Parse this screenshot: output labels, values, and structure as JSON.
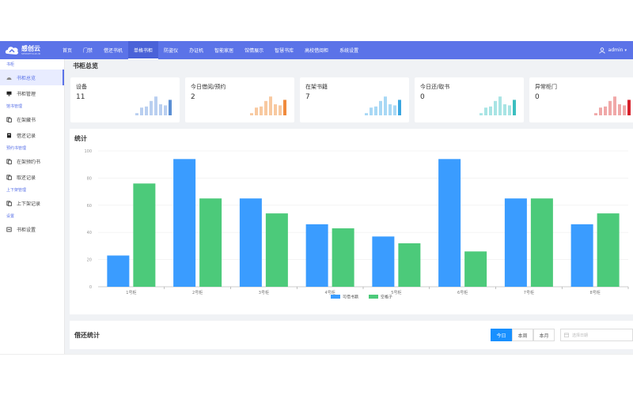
{
  "brand": {
    "name_cn": "感创云",
    "name_en": "SENSETCLOUD"
  },
  "nav": {
    "items": [
      "首页",
      "门禁",
      "借还书机",
      "单格书柜",
      "防盗仪",
      "办证机",
      "智能家居",
      "馆情展示",
      "智慧书库",
      "高校借阅柜",
      "系统设置"
    ],
    "active_index": 3
  },
  "user": {
    "name": "admin"
  },
  "sidebar": {
    "groups": [
      {
        "title": "书柜",
        "items": [
          {
            "label": "书柜总览",
            "icon": "dashboard-icon",
            "active": true
          },
          {
            "label": "书柜管理",
            "icon": "monitor-icon"
          }
        ]
      },
      {
        "title": "馆书管理",
        "items": [
          {
            "label": "在架藏书",
            "icon": "book-icon"
          },
          {
            "label": "借还记录",
            "icon": "record-icon"
          }
        ]
      },
      {
        "title": "预约书管理",
        "items": [
          {
            "label": "在架预约书",
            "icon": "book-icon"
          },
          {
            "label": "取还记录",
            "icon": "book-icon"
          }
        ]
      },
      {
        "title": "上下架管理",
        "items": [
          {
            "label": "上下架记录",
            "icon": "book-icon"
          }
        ]
      },
      {
        "title": "设置",
        "items": [
          {
            "label": "书柜设置",
            "icon": "settings-icon"
          }
        ]
      }
    ]
  },
  "page": {
    "title": "书柜总览"
  },
  "cards": [
    {
      "label": "设备",
      "value": "11",
      "color": "#5b8fd4",
      "light": "#b9cff0",
      "bars": [
        0.1,
        0.35,
        0.4,
        0.65,
        0.85,
        0.5,
        0.45,
        0.7
      ]
    },
    {
      "label": "今日借阅/预约",
      "value": "2",
      "color": "#f08a3c",
      "light": "#f8c9a0",
      "bars": [
        0.1,
        0.35,
        0.4,
        0.65,
        0.85,
        0.5,
        0.45,
        0.7
      ]
    },
    {
      "label": "在架书籍",
      "value": "7",
      "color": "#3aa6e0",
      "light": "#a8d8f5",
      "bars": [
        0.1,
        0.35,
        0.4,
        0.65,
        0.85,
        0.5,
        0.45,
        0.7
      ]
    },
    {
      "label": "今日还/取书",
      "value": "0",
      "color": "#3cbfc0",
      "light": "#a8e4e4",
      "bars": [
        0.1,
        0.35,
        0.4,
        0.65,
        0.85,
        0.5,
        0.45,
        0.7
      ]
    },
    {
      "label": "异常柜门",
      "value": "0",
      "color": "#d6202a",
      "light": "#f0a8a8",
      "bars": [
        0.1,
        0.35,
        0.4,
        0.65,
        0.85,
        0.5,
        0.45,
        0.7
      ]
    }
  ],
  "stats": {
    "title": "统计"
  },
  "chart_data": {
    "type": "bar",
    "categories": [
      "1号柜",
      "2号柜",
      "3号柜",
      "4号柜",
      "5号柜",
      "6号柜",
      "7号柜",
      "8号柜"
    ],
    "series": [
      {
        "name": "可借书籍",
        "color": "#3a9cff",
        "values": [
          23,
          94,
          65,
          46,
          37,
          94,
          65,
          46
        ]
      },
      {
        "name": "空格子",
        "color": "#4cca7a",
        "values": [
          76,
          65,
          54,
          43,
          32,
          26,
          65,
          54
        ]
      }
    ],
    "ylim": [
      0,
      100
    ],
    "yticks": [
      0,
      20,
      40,
      60,
      80,
      100
    ],
    "grid": true,
    "legend": "bottom"
  },
  "borrow": {
    "title": "借还统计",
    "periods": [
      "今日",
      "本周",
      "本月"
    ],
    "active_period": 0,
    "date_placeholder": "选择日期"
  }
}
